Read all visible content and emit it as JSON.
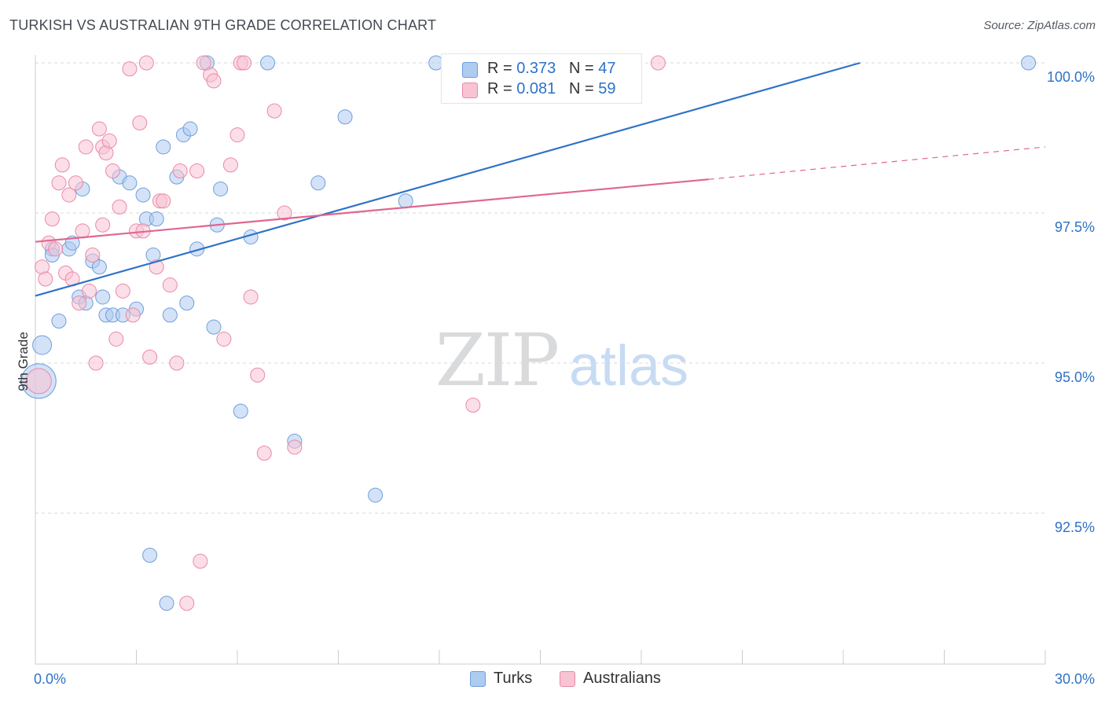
{
  "title": "TURKISH VS AUSTRALIAN 9TH GRADE CORRELATION CHART",
  "source": "Source: ZipAtlas.com",
  "watermark": {
    "zip": "ZIP",
    "atlas": "atlas"
  },
  "legend": {
    "rows": [
      {
        "r_label": "R = ",
        "r_value": "0.373",
        "n_label": "N = ",
        "n_value": "47",
        "color": "#aecbf0",
        "stroke": "#6f9fdb"
      },
      {
        "r_label": "R = ",
        "r_value": "0.081",
        "n_label": "N = ",
        "n_value": "59",
        "color": "#f8c3d3",
        "stroke": "#e98aa8"
      }
    ]
  },
  "bottom_legend": [
    {
      "label": "Turks",
      "color": "#aecbf0",
      "stroke": "#6f9fdb"
    },
    {
      "label": "Australians",
      "color": "#f8c3d3",
      "stroke": "#e98aa8"
    }
  ],
  "chart_data": {
    "type": "scatter",
    "title": "TURKISH VS AUSTRALIAN 9TH GRADE CORRELATION CHART",
    "xlabel": "",
    "ylabel": "9th Grade",
    "xlim": [
      0,
      30
    ],
    "ylim": [
      90.0,
      101.0
    ],
    "x_tick_labels": [
      "0.0%",
      "30.0%"
    ],
    "y_ticks": [
      92.5,
      95.0,
      97.5,
      100.0
    ],
    "y_tick_labels": [
      "92.5%",
      "95.0%",
      "97.5%",
      "100.0%"
    ],
    "grid": true,
    "legend_position": "top-center",
    "series": [
      {
        "name": "Turks",
        "color": "#6f9fdb",
        "fill": "#aecbf0",
        "line_color": "#2e72c8",
        "r": 0.373,
        "n": 47,
        "trend": {
          "x0": 0.0,
          "y0": 96.12,
          "x1": 24.5,
          "y1": 100.0
        },
        "points": [
          [
            0.1,
            94.7,
            22
          ],
          [
            0.2,
            95.3,
            12
          ],
          [
            0.7,
            95.7,
            9
          ],
          [
            0.5,
            96.9,
            9
          ],
          [
            0.5,
            96.8,
            9
          ],
          [
            1.0,
            96.9,
            9
          ],
          [
            1.1,
            97.0,
            9
          ],
          [
            1.4,
            97.9,
            9
          ],
          [
            1.3,
            96.1,
            9
          ],
          [
            1.5,
            96.0,
            9
          ],
          [
            1.7,
            96.7,
            9
          ],
          [
            1.9,
            96.6,
            9
          ],
          [
            2.0,
            96.1,
            9
          ],
          [
            2.1,
            95.8,
            9
          ],
          [
            2.3,
            95.8,
            9
          ],
          [
            2.5,
            98.1,
            9
          ],
          [
            2.8,
            98.0,
            9
          ],
          [
            2.6,
            95.8,
            9
          ],
          [
            3.0,
            95.9,
            9
          ],
          [
            3.2,
            97.8,
            9
          ],
          [
            3.3,
            97.4,
            9
          ],
          [
            3.5,
            96.8,
            9
          ],
          [
            3.6,
            97.4,
            9
          ],
          [
            3.4,
            91.8,
            9
          ],
          [
            3.8,
            98.6,
            9
          ],
          [
            4.0,
            95.8,
            9
          ],
          [
            3.9,
            91.0,
            9
          ],
          [
            4.2,
            98.1,
            9
          ],
          [
            4.4,
            98.8,
            9
          ],
          [
            4.6,
            98.9,
            9
          ],
          [
            4.5,
            96.0,
            9
          ],
          [
            4.8,
            96.9,
            9
          ],
          [
            5.1,
            100.0,
            9
          ],
          [
            5.3,
            95.6,
            9
          ],
          [
            5.4,
            97.3,
            9
          ],
          [
            5.5,
            97.9,
            9
          ],
          [
            6.1,
            94.2,
            9
          ],
          [
            6.4,
            97.1,
            9
          ],
          [
            6.9,
            100.0,
            9
          ],
          [
            7.7,
            93.7,
            9
          ],
          [
            8.4,
            98.0,
            9
          ],
          [
            9.2,
            99.1,
            9
          ],
          [
            10.1,
            92.8,
            9
          ],
          [
            11.0,
            97.7,
            9
          ],
          [
            11.9,
            100.0,
            9
          ],
          [
            12.3,
            100.0,
            9
          ],
          [
            29.5,
            100.0,
            9
          ]
        ]
      },
      {
        "name": "Australians",
        "color": "#e98aa8",
        "fill": "#f8c3d3",
        "line_color": "#e0668f",
        "r": 0.081,
        "n": 59,
        "trend": {
          "x0": 0.0,
          "y0": 97.02,
          "x1": 20.0,
          "y1": 98.06,
          "dash_x1": 30.0,
          "dash_y1": 98.6
        },
        "points": [
          [
            0.1,
            94.7,
            16
          ],
          [
            0.2,
            96.6,
            9
          ],
          [
            0.3,
            96.4,
            9
          ],
          [
            0.4,
            97.0,
            9
          ],
          [
            0.5,
            97.4,
            9
          ],
          [
            0.6,
            96.9,
            9
          ],
          [
            0.7,
            98.0,
            9
          ],
          [
            0.8,
            98.3,
            9
          ],
          [
            0.9,
            96.5,
            9
          ],
          [
            1.0,
            97.8,
            9
          ],
          [
            1.1,
            96.4,
            9
          ],
          [
            1.2,
            98.0,
            9
          ],
          [
            1.3,
            96.0,
            9
          ],
          [
            1.4,
            97.2,
            9
          ],
          [
            1.5,
            98.6,
            9
          ],
          [
            1.6,
            96.2,
            9
          ],
          [
            1.7,
            96.8,
            9
          ],
          [
            1.8,
            95.0,
            9
          ],
          [
            1.9,
            98.9,
            9
          ],
          [
            2.0,
            98.6,
            9
          ],
          [
            2.1,
            98.5,
            9
          ],
          [
            2.2,
            98.7,
            9
          ],
          [
            2.3,
            98.2,
            9
          ],
          [
            2.0,
            97.3,
            9
          ],
          [
            2.4,
            95.4,
            9
          ],
          [
            2.5,
            97.6,
            9
          ],
          [
            2.6,
            96.2,
            9
          ],
          [
            2.8,
            99.9,
            9
          ],
          [
            2.9,
            95.8,
            9
          ],
          [
            3.0,
            97.2,
            9
          ],
          [
            3.1,
            99.0,
            9
          ],
          [
            3.3,
            100.0,
            9
          ],
          [
            3.2,
            97.2,
            9
          ],
          [
            3.4,
            95.1,
            9
          ],
          [
            3.6,
            96.6,
            9
          ],
          [
            3.7,
            97.7,
            9
          ],
          [
            3.8,
            97.7,
            9
          ],
          [
            4.0,
            96.3,
            9
          ],
          [
            4.2,
            95.0,
            9
          ],
          [
            4.3,
            98.2,
            9
          ],
          [
            4.5,
            91.0,
            9
          ],
          [
            4.8,
            98.2,
            9
          ],
          [
            4.9,
            91.7,
            9
          ],
          [
            5.0,
            100.0,
            9
          ],
          [
            5.2,
            99.8,
            9
          ],
          [
            5.3,
            99.7,
            9
          ],
          [
            5.6,
            95.4,
            9
          ],
          [
            5.8,
            98.3,
            9
          ],
          [
            6.0,
            98.8,
            9
          ],
          [
            6.1,
            100.0,
            9
          ],
          [
            6.2,
            100.0,
            9
          ],
          [
            6.4,
            96.1,
            9
          ],
          [
            6.6,
            94.8,
            9
          ],
          [
            6.8,
            93.5,
            9
          ],
          [
            7.1,
            99.2,
            9
          ],
          [
            7.4,
            97.5,
            9
          ],
          [
            7.7,
            93.6,
            9
          ],
          [
            13.0,
            94.3,
            9
          ],
          [
            18.5,
            100.0,
            9
          ]
        ]
      }
    ]
  }
}
